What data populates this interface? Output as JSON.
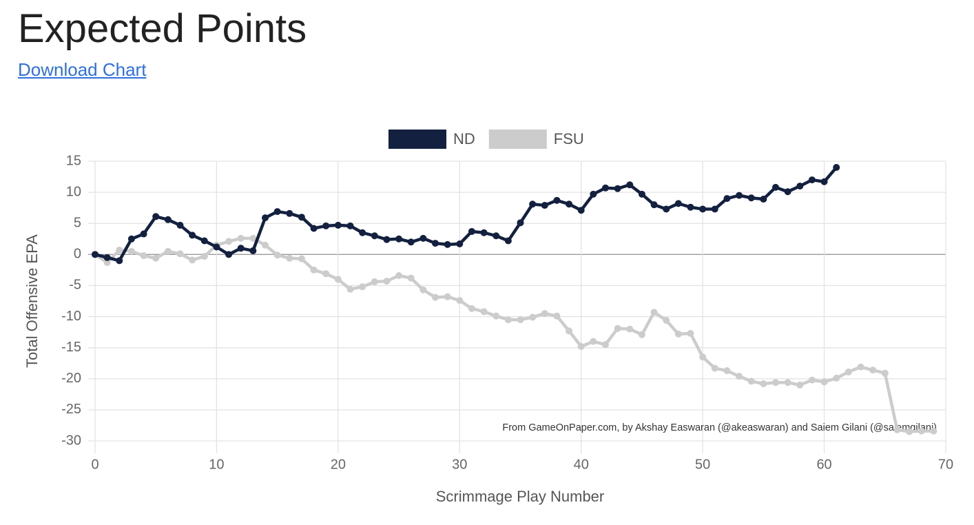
{
  "header": {
    "title": "Expected Points",
    "link": "Download Chart"
  },
  "chart_data": {
    "type": "line",
    "x_label": "Scrimmage Play Number",
    "y_label": "Total Offensive EPA",
    "annotation": "From GameOnPaper.com, by Akshay Easwaran (@akeaswaran) and Saiem Gilani (@saiemgilani)",
    "x": [
      0,
      1,
      2,
      3,
      4,
      5,
      6,
      7,
      8,
      9,
      10,
      11,
      12,
      13,
      14,
      15,
      16,
      17,
      18,
      19,
      20,
      21,
      22,
      23,
      24,
      25,
      26,
      27,
      28,
      29,
      30,
      31,
      32,
      33,
      34,
      35,
      36,
      37,
      38,
      39,
      40,
      41,
      42,
      43,
      44,
      45,
      46,
      47,
      48,
      49,
      50,
      51,
      52,
      53,
      54,
      55,
      56,
      57,
      58,
      59,
      60,
      61,
      62,
      63,
      64,
      65,
      66,
      67,
      68,
      69
    ],
    "series": [
      {
        "name": "ND",
        "color": "#13203f",
        "values": [
          0,
          -0.5,
          -1,
          2.5,
          3.3,
          6.1,
          5.6,
          4.7,
          3.1,
          2.2,
          1.2,
          0,
          1,
          0.6,
          5.9,
          6.9,
          6.6,
          6.0,
          4.2,
          4.6,
          4.7,
          4.6,
          3.5,
          3,
          2.4,
          2.5,
          2,
          2.6,
          1.8,
          1.6,
          1.7,
          3.7,
          3.5,
          3,
          2.2,
          5.1,
          8.1,
          7.9,
          8.7,
          8.1,
          7.1,
          9.7,
          10.7,
          10.6,
          11.2,
          9.7,
          8,
          7.3,
          8.2,
          7.6,
          7.3,
          7.3,
          9,
          9.5,
          9.1,
          8.9,
          10.8,
          10.1,
          11,
          12,
          11.7,
          14,
          null,
          null,
          null,
          null,
          null,
          null,
          null,
          null
        ]
      },
      {
        "name": "FSU",
        "color": "#cccccc",
        "values": [
          0,
          -1.3,
          0.7,
          0.5,
          -0.2,
          -0.6,
          0.5,
          0.1,
          -0.9,
          -0.3,
          1.5,
          2.1,
          2.6,
          2.6,
          1.5,
          -0.1,
          -0.6,
          -0.7,
          -2.5,
          -3.1,
          -4,
          -5.6,
          -5.2,
          -4.4,
          -4.3,
          -3.4,
          -3.8,
          -5.7,
          -6.9,
          -6.8,
          -7.4,
          -8.7,
          -9.2,
          -9.9,
          -10.5,
          -10.5,
          -10.1,
          -9.5,
          -9.9,
          -12.3,
          -14.8,
          -14,
          -14.5,
          -11.9,
          -12,
          -12.9,
          -9.3,
          -10.6,
          -12.8,
          -12.7,
          -16.5,
          -18.3,
          -18.7,
          -19.6,
          -20.4,
          -20.8,
          -20.6,
          -20.6,
          -21,
          -20.2,
          -20.5,
          -19.9,
          -18.9,
          -18.1,
          -18.6,
          -19.1,
          -28.2,
          -28.5,
          -28.4,
          -28.4
        ]
      }
    ],
    "xlim": [
      0,
      70
    ],
    "xticks": [
      0,
      10,
      20,
      30,
      40,
      50,
      60,
      70
    ],
    "ylim": [
      -30,
      15
    ],
    "yticks": [
      15,
      10,
      5,
      0,
      -5,
      -10,
      -15,
      -20,
      -25,
      -30
    ],
    "grid": true,
    "legend": "top"
  }
}
